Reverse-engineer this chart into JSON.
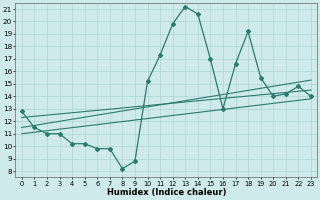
{
  "xlabel": "Humidex (Indice chaleur)",
  "bg_color": "#ceeaea",
  "grid_color": "#aed4d4",
  "line_color": "#2a7a70",
  "xlim": [
    -0.5,
    23.5
  ],
  "ylim": [
    7.5,
    21.5
  ],
  "xticks": [
    0,
    1,
    2,
    3,
    4,
    5,
    6,
    7,
    8,
    9,
    10,
    11,
    12,
    13,
    14,
    15,
    16,
    17,
    18,
    19,
    20,
    21,
    22,
    23
  ],
  "yticks": [
    8,
    9,
    10,
    11,
    12,
    13,
    14,
    15,
    16,
    17,
    18,
    19,
    20,
    21
  ],
  "line1_x": [
    0,
    1,
    2,
    3,
    4,
    5,
    6,
    7,
    8,
    9,
    10,
    11,
    12,
    13,
    14,
    15,
    16,
    17,
    18,
    19,
    20,
    21,
    22,
    23
  ],
  "line1_y": [
    12.8,
    11.5,
    11.0,
    11.0,
    10.2,
    10.2,
    9.8,
    9.8,
    8.2,
    8.8,
    15.2,
    17.3,
    19.8,
    21.2,
    20.6,
    17.0,
    13.0,
    16.6,
    19.2,
    15.5,
    14.0,
    14.2,
    14.8,
    14.0
  ],
  "line2_x": [
    0,
    23
  ],
  "line2_y": [
    11.5,
    15.3
  ],
  "line3_x": [
    0,
    23
  ],
  "line3_y": [
    12.3,
    14.5
  ],
  "line4_x": [
    0,
    23
  ],
  "line4_y": [
    11.0,
    13.8
  ]
}
